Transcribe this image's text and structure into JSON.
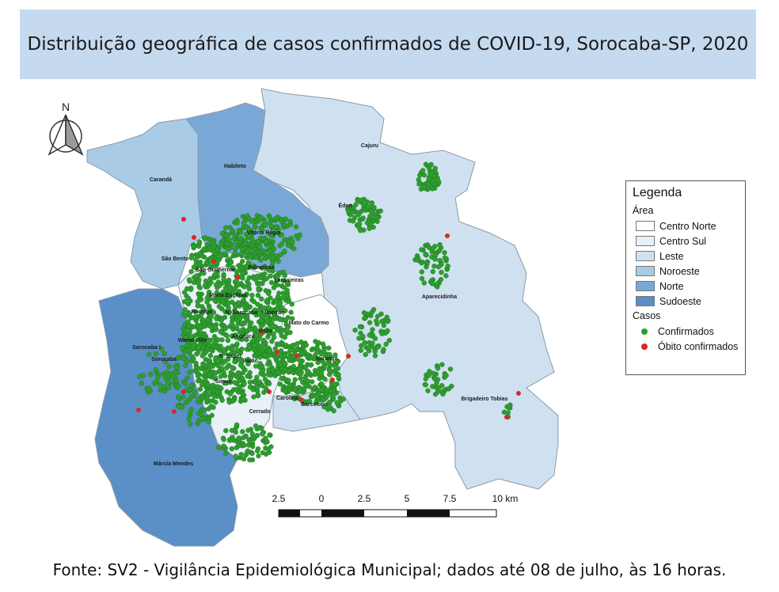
{
  "title": "Distribuição geográfica de casos confirmados de COVID-19, Sorocaba-SP, 2020",
  "north_label": "N",
  "legend": {
    "title": "Legenda",
    "area_header": "Área",
    "areas": [
      {
        "label": "Centro Norte",
        "color": "#ffffff"
      },
      {
        "label": "Centro Sul",
        "color": "#e8f0f8"
      },
      {
        "label": "Leste",
        "color": "#cfe1f1"
      },
      {
        "label": "Noroeste",
        "color": "#a9cbe6"
      },
      {
        "label": "Norte",
        "color": "#7aa8d6"
      },
      {
        "label": "Sudoeste",
        "color": "#5a8fc8"
      }
    ],
    "cases_header": "Casos",
    "cases": [
      {
        "label": "Confirmados",
        "color": "#2e9e2e"
      },
      {
        "label": "Óbito confirmados",
        "color": "#d62828"
      }
    ]
  },
  "places": [
    "Cajuru",
    "Habiteto",
    "Carandá",
    "Éden",
    "Vitória Régia",
    "São Bento",
    "Palmeiras",
    "Laranjeiras",
    "São Guilherme",
    "Maria Eugênia",
    "Aparecidinha",
    "Rodrigo",
    "N. Sorocaba",
    "Mineirão",
    "Mato do Carmo",
    "Angélica",
    "Vitão",
    "Wanel Ville",
    "Sorocaba I",
    "Sorocaba",
    "N. Esper.",
    "Barão",
    "Ipiranga",
    "Simus",
    "Carolina",
    "Brigadeiro Tobias",
    "Barcelona",
    "Cerrado",
    "Márcia Mendes"
  ],
  "scale": {
    "ticks": [
      "2.5",
      "0",
      "2.5",
      "5",
      "7.5",
      "10 km"
    ]
  },
  "footer": "Fonte: SV2 - Vigilância Epidemiológica Municipal; dados até 08 de julho, às 16 horas."
}
